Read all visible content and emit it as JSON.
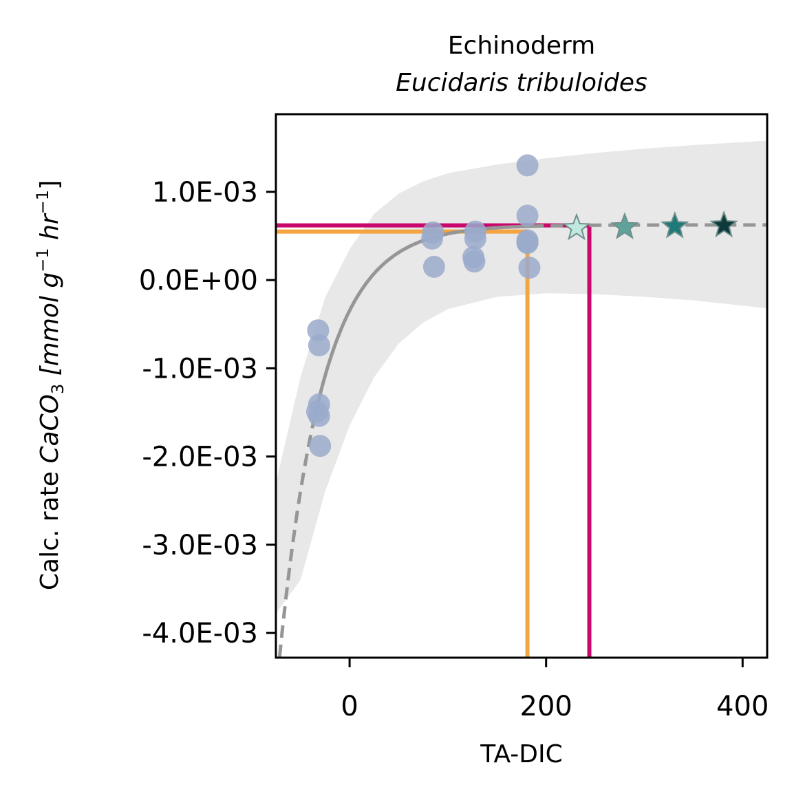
{
  "chart_data": {
    "type": "scatter",
    "title": "Echinoderm",
    "subtitle": "Eucidaris tribuloides",
    "xlabel": "TA-DIC",
    "ylabel": {
      "prefix": "Calc. rate ",
      "compound": "CaCO",
      "compound_sub": "3",
      "unit_open": " [mmol g",
      "exp1": "−1",
      "unit_mid": " hr",
      "exp2": "−1",
      "unit_close": "]"
    },
    "xlim": [
      -75,
      425
    ],
    "ylim": [
      -0.00428,
      0.00188
    ],
    "x_ticks": [
      {
        "value": 0,
        "label": "0"
      },
      {
        "value": 200,
        "label": "200"
      },
      {
        "value": 400,
        "label": "400"
      }
    ],
    "y_ticks": [
      {
        "value": 0.001,
        "label": "1.0E-03"
      },
      {
        "value": 0.0,
        "label": "0.0E+00"
      },
      {
        "value": -0.001,
        "label": "-1.0E-03"
      },
      {
        "value": -0.002,
        "label": "-2.0E-03"
      },
      {
        "value": -0.003,
        "label": "-3.0E-03"
      },
      {
        "value": -0.004,
        "label": "-4.0E-03"
      }
    ],
    "observations": {
      "color": "#9aaacb",
      "x": [
        -32,
        -31,
        -31,
        -31,
        -30,
        -33,
        85,
        84,
        86,
        128,
        128,
        126,
        127,
        181,
        181,
        181,
        181,
        183,
        181
      ],
      "y": [
        -0.00057,
        -0.00074,
        -0.00141,
        -0.00154,
        -0.00188,
        -0.00149,
        0.00054,
        0.00047,
        0.00015,
        0.00055,
        0.00047,
        0.00026,
        0.00021,
        0.0013,
        0.00073,
        0.00045,
        0.00042,
        0.00014,
        0.00043
      ]
    },
    "fit": {
      "color": "#969696",
      "model": "exponential",
      "a": 0.000625,
      "b": 0.00215,
      "k": 0.0227,
      "x0": -35,
      "solid_range": [
        -35,
        185
      ],
      "dashed_ranges": [
        [
          -75,
          -35
        ],
        [
          185,
          425
        ]
      ]
    },
    "confidence_band": {
      "color": "#e8e8e8",
      "x": [
        -75,
        -50,
        -25,
        0,
        25,
        50,
        75,
        100,
        150,
        200,
        250,
        300,
        350,
        425
      ],
      "upper": [
        -0.0023,
        -0.0011,
        -0.0002,
        0.00035,
        0.00075,
        0.00098,
        0.00112,
        0.00121,
        0.00131,
        0.00138,
        0.00144,
        0.00149,
        0.00153,
        0.00158
      ],
      "lower": [
        -0.00378,
        -0.0034,
        -0.0024,
        -0.00165,
        -0.0011,
        -0.00072,
        -0.00048,
        -0.00033,
        -0.00019,
        -0.00015,
        -0.00016,
        -0.00019,
        -0.00023,
        -0.00032
      ]
    },
    "stars": {
      "x": [
        231,
        280,
        331,
        381
      ],
      "y": [
        0.00059,
        0.0006,
        0.00061,
        0.00062
      ],
      "colors": [
        "#bfe8df",
        "#5fa39a",
        "#1d7a78",
        "#0f3a3b"
      ]
    },
    "reference_lines": [
      {
        "color": "#f5a442",
        "x": 181,
        "y": 0.00055
      },
      {
        "color": "#c8096b",
        "x": 244,
        "y": 0.00062
      }
    ],
    "grid": false,
    "legend": "none"
  }
}
